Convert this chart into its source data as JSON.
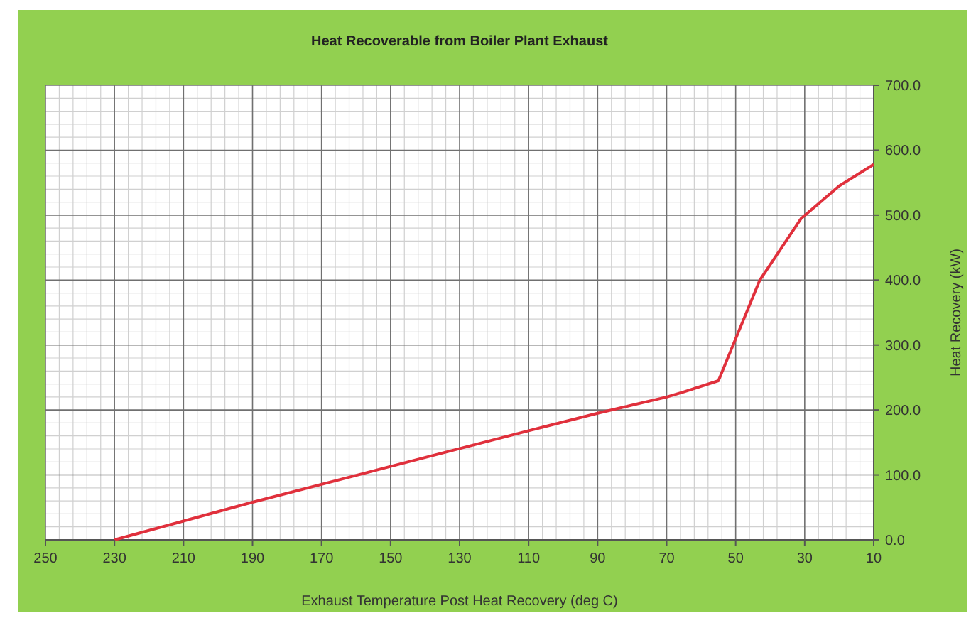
{
  "chart_data": {
    "type": "line",
    "title": "Heat Recoverable from Boiler Plant Exhaust",
    "xlabel": "Exhaust Temperature Post Heat Recovery (deg C)",
    "ylabel": "Heat Recovery (kW)",
    "x": [
      230,
      190,
      150,
      110,
      90,
      70,
      65,
      55,
      43,
      31,
      20,
      10
    ],
    "series": [
      {
        "color": "#e0303c",
        "values": [
          0,
          58,
          113,
          168,
          195,
          220,
          228,
          245,
          400,
          495,
          545,
          578
        ]
      }
    ],
    "xlim": [
      250,
      10
    ],
    "xticks": [
      250,
      230,
      210,
      190,
      170,
      150,
      130,
      110,
      90,
      70,
      50,
      30,
      10
    ],
    "ylim": [
      0,
      700
    ],
    "yticks": [
      {
        "value": 0,
        "label": "0.0"
      },
      {
        "value": 100,
        "label": "100.0"
      },
      {
        "value": 200,
        "label": "200.0"
      },
      {
        "value": 300,
        "label": "300.0"
      },
      {
        "value": 400,
        "label": "400.0"
      },
      {
        "value": 500,
        "label": "500.0"
      },
      {
        "value": 600,
        "label": "600.0"
      },
      {
        "value": 700,
        "label": "700.0"
      }
    ],
    "grid": true,
    "marker": "none",
    "line_style": "solid"
  }
}
